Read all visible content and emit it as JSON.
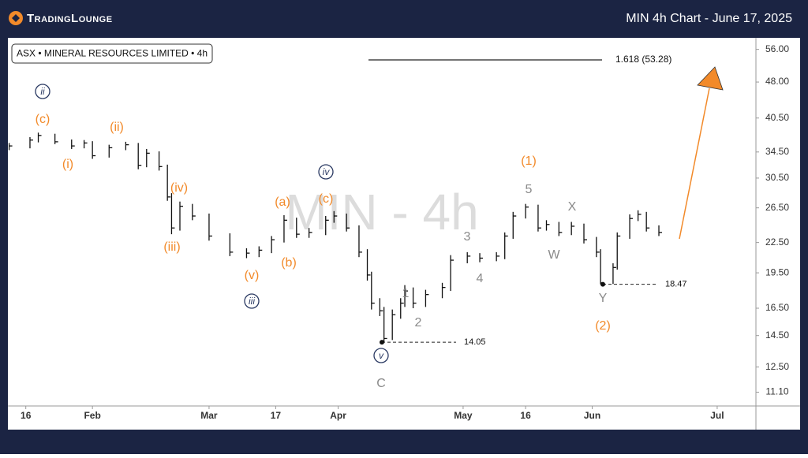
{
  "header": {
    "logo": "TradingLounge",
    "title": "MIN 4h Chart - June 17, 2025"
  },
  "chart_data": {
    "type": "hlc",
    "instrument": "ASX • MINERAL RESOURCES LIMITED • 4h",
    "watermark": "MIN - 4h",
    "log_scale": true,
    "bar_color": "#111111",
    "x": [
      12,
      17,
      19,
      23,
      27,
      30,
      32,
      36,
      40,
      43,
      45,
      48,
      50,
      51,
      53,
      56,
      60,
      65,
      69,
      72,
      75,
      78,
      81,
      84,
      88,
      90,
      93,
      96,
      98,
      99,
      101,
      102,
      104,
      106,
      107,
      109,
      112,
      116,
      118,
      122,
      125,
      129,
      131,
      133,
      136,
      139,
      141,
      144,
      147,
      150,
      153,
      154,
      157,
      158,
      161,
      163,
      165,
      168
    ],
    "high": [
      36.0,
      37.0,
      37.8,
      37.6,
      36.6,
      36.5,
      36.3,
      35.7,
      36.2,
      36.0,
      35.0,
      34.6,
      32.5,
      28.4,
      27.3,
      27.0,
      25.8,
      23.5,
      21.9,
      22.1,
      23.2,
      25.6,
      25.3,
      24.1,
      25.5,
      26.1,
      25.8,
      24.4,
      21.8,
      19.6,
      17.3,
      16.6,
      16.4,
      17.3,
      18.4,
      18.2,
      18.0,
      18.6,
      21.2,
      21.5,
      21.4,
      21.5,
      23.6,
      26.0,
      27.0,
      26.9,
      25.0,
      24.8,
      24.8,
      24.6,
      23.1,
      21.8,
      20.4,
      23.6,
      25.7,
      26.2,
      26.0,
      24.4
    ],
    "low": [
      34.8,
      35.1,
      36.1,
      35.8,
      35.0,
      35.1,
      33.4,
      33.6,
      34.8,
      31.8,
      32.1,
      31.6,
      27.4,
      23.4,
      23.8,
      25.0,
      22.7,
      21.1,
      20.9,
      21.0,
      21.4,
      22.5,
      23.0,
      23.0,
      23.3,
      24.7,
      23.7,
      21.0,
      18.8,
      16.4,
      15.9,
      14.05,
      14.2,
      15.7,
      16.6,
      16.5,
      16.6,
      17.3,
      17.9,
      20.4,
      20.5,
      20.6,
      20.8,
      22.9,
      25.2,
      23.7,
      23.8,
      23.2,
      23.3,
      22.4,
      21.0,
      18.47,
      18.5,
      19.8,
      22.9,
      24.9,
      23.7,
      23.2
    ],
    "close": [
      35.5,
      36.5,
      37.3,
      36.2,
      35.5,
      36.0,
      33.9,
      35.2,
      35.7,
      32.4,
      34.3,
      32.2,
      27.9,
      24.1,
      26.7,
      25.5,
      23.2,
      21.5,
      21.4,
      21.7,
      22.8,
      25.0,
      23.4,
      23.6,
      25.0,
      25.5,
      24.1,
      21.5,
      19.3,
      16.9,
      16.3,
      14.3,
      16.0,
      16.9,
      17.9,
      16.9,
      17.6,
      18.2,
      20.7,
      21.1,
      20.9,
      21.1,
      23.2,
      25.5,
      26.6,
      24.1,
      24.5,
      23.6,
      24.3,
      22.8,
      21.5,
      18.6,
      20.0,
      23.2,
      25.2,
      25.7,
      24.1,
      23.6
    ],
    "xlim": [
      11.7,
      191.3
    ],
    "xticks": [
      16,
      {
        "value": 32,
        "label": "Feb"
      },
      {
        "value": 60,
        "label": "Mar"
      },
      {
        "value": 76,
        "label": "17"
      },
      {
        "value": 91,
        "label": "Apr"
      },
      {
        "value": 121,
        "label": "May"
      },
      {
        "value": 136,
        "label": "16"
      },
      {
        "value": 152,
        "label": "Jun"
      },
      {
        "value": 182,
        "label": "Jul"
      }
    ],
    "ylim": [
      10.4,
      58.7
    ],
    "yticks": [
      {
        "value": 56,
        "label": "56.00"
      },
      {
        "value": 48,
        "label": "48.00"
      },
      {
        "value": 40.5,
        "label": "40.50"
      },
      {
        "value": 34.5,
        "label": "34.50"
      },
      {
        "value": 30.5,
        "label": "30.50"
      },
      {
        "value": 26.5,
        "label": "26.50"
      },
      {
        "value": 22.5,
        "label": "22.50"
      },
      {
        "value": 19.5,
        "label": "19.50"
      },
      {
        "value": 16.5,
        "label": "16.50"
      },
      {
        "value": 14.5,
        "label": "14.50"
      },
      {
        "value": 12.5,
        "label": "12.50"
      },
      {
        "value": 11.1,
        "label": "11.10"
      }
    ],
    "fib_level": {
      "value": 53.28,
      "label": "1.618 (53.28)"
    },
    "support_levels": [
      14.05,
      18.47
    ],
    "wave_labels": [
      {
        "text": "ii",
        "color": "#2b3a63",
        "circled": true
      },
      {
        "text": "(c)",
        "color": "#f28a2a"
      },
      {
        "text": "(i)",
        "color": "#f28a2a"
      },
      {
        "text": "(ii)",
        "color": "#f28a2a"
      },
      {
        "text": "(iv)",
        "color": "#f28a2a"
      },
      {
        "text": "(iii)",
        "color": "#f28a2a"
      },
      {
        "text": "(v)",
        "color": "#f28a2a"
      },
      {
        "text": "iii",
        "color": "#2b3a63",
        "circled": true
      },
      {
        "text": "(a)",
        "color": "#f28a2a"
      },
      {
        "text": "(b)",
        "color": "#f28a2a"
      },
      {
        "text": "(c)",
        "color": "#f28a2a"
      },
      {
        "text": "iv",
        "color": "#2b3a63",
        "circled": true
      },
      {
        "text": "v",
        "color": "#2b3a63",
        "circled": true
      },
      {
        "text": "C",
        "color": "#8a8a8a"
      },
      {
        "text": "1",
        "color": "#8a8a8a"
      },
      {
        "text": "2",
        "color": "#8a8a8a"
      },
      {
        "text": "3",
        "color": "#8a8a8a"
      },
      {
        "text": "4",
        "color": "#8a8a8a"
      },
      {
        "text": "5",
        "color": "#8a8a8a"
      },
      {
        "text": "(1)",
        "color": "#f28a2a"
      },
      {
        "text": "X",
        "color": "#8a8a8a"
      },
      {
        "text": "W",
        "color": "#8a8a8a"
      },
      {
        "text": "Y",
        "color": "#8a8a8a"
      },
      {
        "text": "(2)",
        "color": "#f28a2a"
      }
    ]
  }
}
